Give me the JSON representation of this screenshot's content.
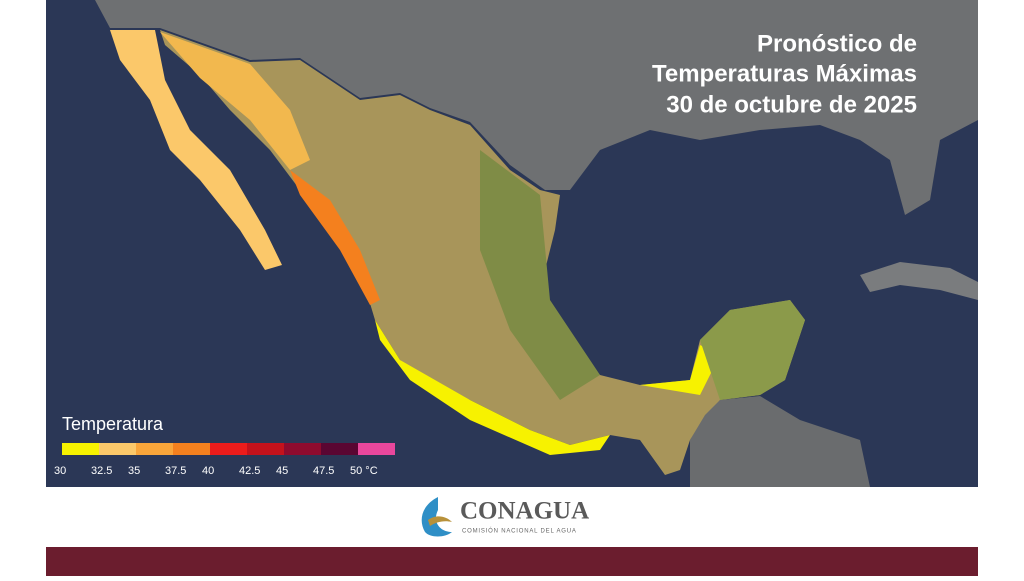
{
  "map": {
    "title_lines": [
      "Pronóstico de",
      "Temperaturas Máximas",
      "30 de octubre  de 2025"
    ]
  },
  "legend": {
    "title": "Temperatura",
    "labels": [
      "30",
      "32.5",
      "35",
      "37.5",
      "40",
      "42.5",
      "45",
      "47.5",
      "50 °C"
    ],
    "colors": [
      "#f7f200",
      "#fbc86a",
      "#f9a53a",
      "#f4801e",
      "#ec1c1c",
      "#c4121c",
      "#8e0b2e",
      "#5a0632",
      "#e9479c"
    ]
  },
  "footer": {
    "logo_name": "CONAGUA",
    "logo_subtitle": "COMISIÓN NACIONAL DEL AGUA"
  }
}
